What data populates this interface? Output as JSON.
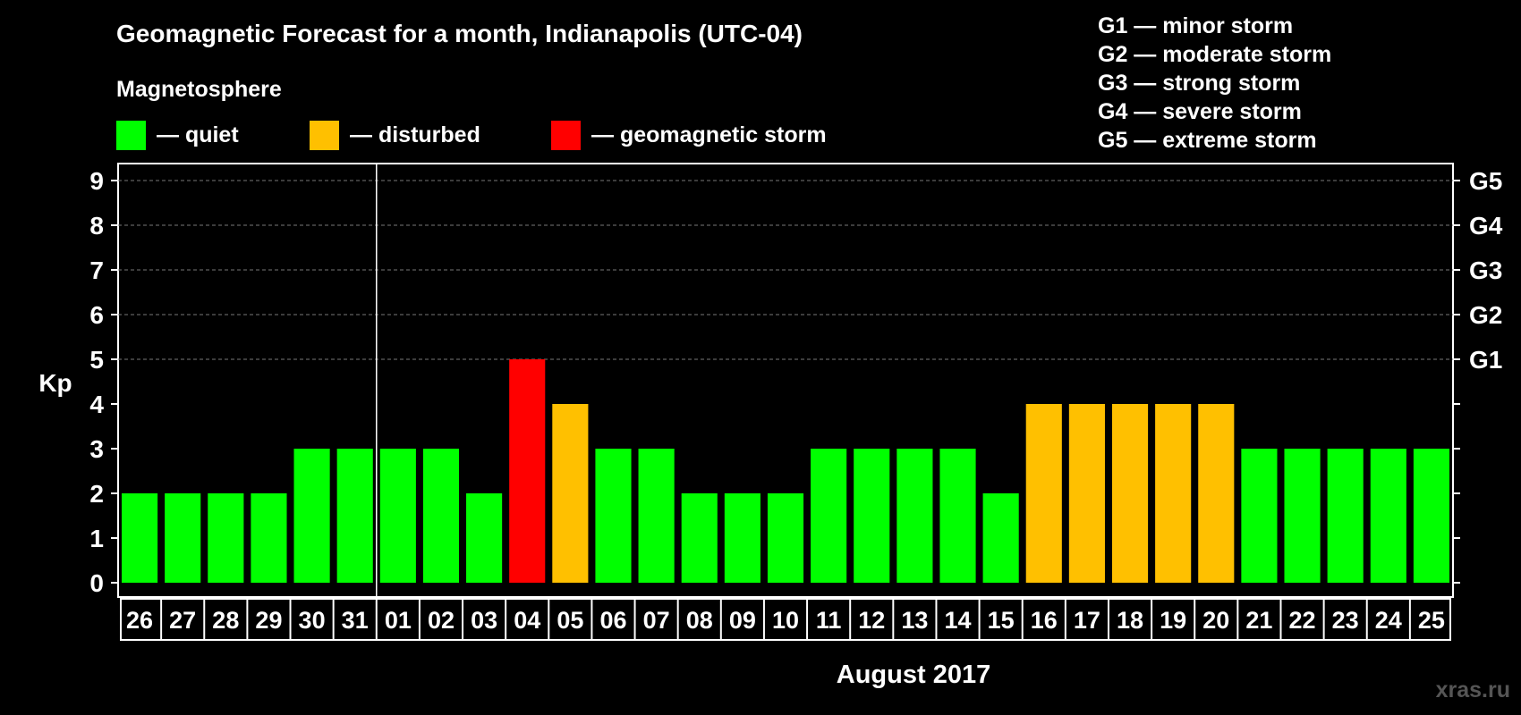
{
  "title": "Geomagnetic Forecast for a month, Indianapolis (UTC-04)",
  "legend": {
    "heading": "Magnetosphere",
    "items": [
      {
        "label": "— quiet",
        "color": "#00ff00"
      },
      {
        "label": "— disturbed",
        "color": "#ffc000"
      },
      {
        "label": "— geomagnetic storm",
        "color": "#ff0000"
      }
    ]
  },
  "storm_scale": [
    "G1 — minor storm",
    "G2 — moderate storm",
    "G3 — strong storm",
    "G4 — severe storm",
    "G5 — extreme storm"
  ],
  "watermark": "xras.ru",
  "chart_data": {
    "type": "bar",
    "title": "Geomagnetic Forecast for a month, Indianapolis (UTC-04)",
    "ylabel": "Kp",
    "xlabel": "August 2017",
    "ylim": [
      0,
      9
    ],
    "yticks": [
      "0",
      "1",
      "2",
      "3",
      "4",
      "5",
      "6",
      "7",
      "8",
      "9"
    ],
    "right_ticks": [
      {
        "value": 5,
        "label": "G1"
      },
      {
        "value": 6,
        "label": "G2"
      },
      {
        "value": 7,
        "label": "G3"
      },
      {
        "value": 8,
        "label": "G4"
      },
      {
        "value": 9,
        "label": "G5"
      }
    ],
    "categories": [
      "26",
      "27",
      "28",
      "29",
      "30",
      "31",
      "01",
      "02",
      "03",
      "04",
      "05",
      "06",
      "07",
      "08",
      "09",
      "10",
      "11",
      "12",
      "13",
      "14",
      "15",
      "16",
      "17",
      "18",
      "19",
      "20",
      "21",
      "22",
      "23",
      "24",
      "25"
    ],
    "values": [
      2,
      2,
      2,
      2,
      3,
      3,
      3,
      3,
      2,
      5,
      4,
      3,
      3,
      2,
      2,
      2,
      3,
      3,
      3,
      3,
      2,
      4,
      4,
      4,
      4,
      4,
      3,
      3,
      3,
      3,
      3
    ],
    "status": [
      "quiet",
      "quiet",
      "quiet",
      "quiet",
      "quiet",
      "quiet",
      "quiet",
      "quiet",
      "quiet",
      "geomagnetic storm",
      "disturbed",
      "quiet",
      "quiet",
      "quiet",
      "quiet",
      "quiet",
      "quiet",
      "quiet",
      "quiet",
      "quiet",
      "quiet",
      "disturbed",
      "disturbed",
      "disturbed",
      "disturbed",
      "disturbed",
      "quiet",
      "quiet",
      "quiet",
      "quiet",
      "quiet"
    ],
    "colors": {
      "quiet": "#00ff00",
      "disturbed": "#ffc000",
      "geomagnetic storm": "#ff0000"
    },
    "month_separator_after": "31",
    "grid": true
  }
}
